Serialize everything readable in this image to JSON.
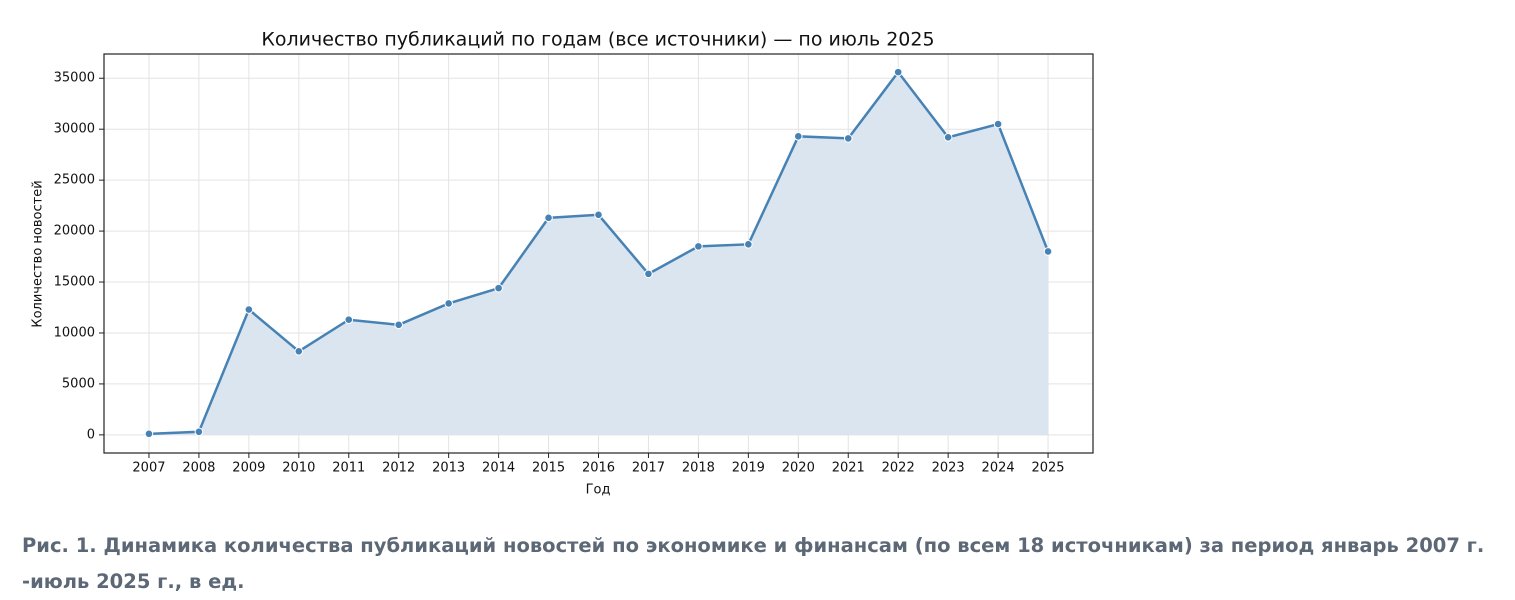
{
  "chart_data": {
    "type": "line",
    "title": "Количество публикаций по годам (все источники) — по июль 2025",
    "x_label": "Год",
    "y_label": "Количество новостей",
    "categories": [
      "2007",
      "2008",
      "2009",
      "2010",
      "2011",
      "2012",
      "2013",
      "2014",
      "2015",
      "2016",
      "2017",
      "2018",
      "2019",
      "2020",
      "2021",
      "2022",
      "2023",
      "2024",
      "2025"
    ],
    "series": [
      {
        "name": "Количество новостей",
        "color": "#4682b4",
        "fill": "#dae5f0",
        "values": [
          100,
          300,
          12300,
          8200,
          11300,
          10800,
          12900,
          14400,
          21300,
          21600,
          15800,
          18500,
          18700,
          29300,
          29100,
          35600,
          29200,
          30500,
          18000
        ]
      }
    ],
    "ylim": [
      -1780,
      37380
    ],
    "yticks": [
      0,
      5000,
      10000,
      15000,
      20000,
      25000,
      30000,
      35000
    ],
    "grid": true
  },
  "caption": "Рис. 1. Динамика количества публикаций новостей по экономике и финансам (по всем 18 источникам) за период январь 2007 г. -июль 2025 г., в ед."
}
